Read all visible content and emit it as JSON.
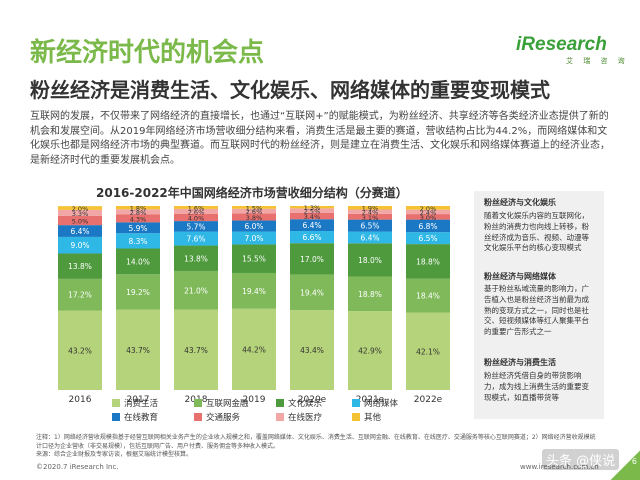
{
  "header": {
    "title": "新经济时代的机会点",
    "subtitle": "粉丝经济是消费生活、文化娱乐、网络媒体的重要变现模式",
    "logo_text": "iResearch",
    "logo_sub": "艾 瑞 咨 询"
  },
  "intro": "互联网的发展，不仅带来了网络经济的直接增长，也通过“互联网+”的赋能模式，为粉丝经济、共享经济等各类经济业态提供了新的机会和发展空间。从2019年网络经济市场营收细分结构来看，消费生活是最主要的赛道，营收结构占比为44.2%，而网络媒体和文化娱乐也都是网络经济市场的典型赛道。而互联网时代的粉丝经济，则是建立在消费生活、文化娱乐和网络媒体赛道上的经济业态，是新经济时代的重要发展机会点。",
  "chart_data": {
    "type": "bar",
    "stacked": true,
    "percent": true,
    "title": "2016-2022年中国网络经济市场营收细分结构（分赛道）",
    "categories": [
      "2016",
      "2017",
      "2018",
      "2019",
      "2020e",
      "2021e",
      "2022e"
    ],
    "series": [
      {
        "name": "消费生活",
        "color": "#b5d37a",
        "values": [
          43.2,
          43.7,
          43.7,
          44.2,
          43.4,
          42.9,
          42.1
        ]
      },
      {
        "name": "互联网金融",
        "color": "#7fb95a",
        "values": [
          17.2,
          19.2,
          21.0,
          19.4,
          19.4,
          18.8,
          18.4
        ]
      },
      {
        "name": "文化娱乐",
        "color": "#4e9a3d",
        "values": [
          13.8,
          14.0,
          13.8,
          15.5,
          17.0,
          18.0,
          18.8
        ]
      },
      {
        "name": "网络媒体",
        "color": "#2fb8e6",
        "values": [
          9.0,
          8.3,
          7.6,
          7.0,
          6.6,
          6.4,
          6.5
        ]
      },
      {
        "name": "在线教育",
        "color": "#1b78c4",
        "values": [
          6.4,
          5.9,
          5.7,
          6.0,
          6.4,
          6.5,
          6.8
        ]
      },
      {
        "name": "交通服务",
        "color": "#e8706e",
        "values": [
          5.0,
          4.3,
          4.0,
          3.8,
          3.4,
          3.1,
          3.0
        ]
      },
      {
        "name": "在线医疗",
        "color": "#f2a6a6",
        "values": [
          3.3,
          2.8,
          2.6,
          2.6,
          2.5,
          2.4,
          2.4
        ]
      },
      {
        "name": "其他",
        "color": "#f5c233",
        "values": [
          2.0,
          1.8,
          1.6,
          1.5,
          1.3,
          1.9,
          2.0
        ]
      }
    ],
    "ylim": [
      0,
      100
    ]
  },
  "side": [
    {
      "title": "粉丝经济与文化娱乐",
      "text": "随着文化娱乐内容的互联网化，粉丝的消费力也向线上转移，粉丝经济成为音乐、视频、动漫等文化娱乐平台的核心变现模式"
    },
    {
      "title": "粉丝经济与网络媒体",
      "text": "基于粉丝私域流量的影响力，广告植入也是粉丝经济当前最为成熟的变现方式之一，同时也是社交、短视频媒体等红人聚集平台的重要广告形式之一"
    },
    {
      "title": "粉丝经济与消费生活",
      "text": "粉丝经济凭借自身的带货影响力，成为线上消费生活的重要变现模式，如直播带货等"
    }
  ],
  "footnote": {
    "line1": "注释：1）网络经济营收规模指基于经营互联网相关业务产生的企业收入规模之和，覆盖网络媒体、文化娱乐、消费生活、互联网金融、在线教育、在线医疗、交通服务等核心互联网赛道；2）网络经济营收规模统计口径为企业营收（非交易规模），包括互联网广告、用户付费、服务佣金等多种收入模式。",
    "line2": "来源：综合企业财报及专家访谈，根据艾瑞统计模型核算。"
  },
  "footer": {
    "copyright": "©2020.7 iResearch Inc.",
    "website": "www.iresearch.com.cn",
    "watermark": "头条 @侠说",
    "page": "6"
  }
}
